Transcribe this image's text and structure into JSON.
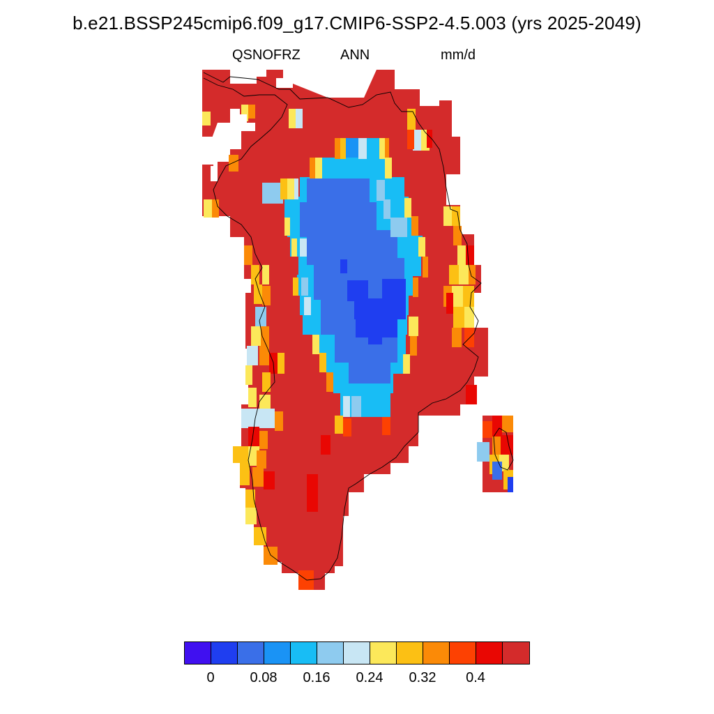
{
  "title": "b.e21.BSSP245cmip6.f09_g17.CMIP6-SSP2-4.5.003 (yrs 2025-2049)",
  "variable": "QSNOFRZ",
  "period": "ANN",
  "units": "mm/d",
  "colorbar": {
    "colors": [
      "#4010f0",
      "#1f3ef0",
      "#3a6fe8",
      "#1a93f5",
      "#18bdf5",
      "#8ecbef",
      "#c8e6f4",
      "#fce85a",
      "#fcc014",
      "#fb8a07",
      "#fd4102",
      "#e90703",
      "#d42b2b"
    ],
    "tick_labels": [
      "0",
      "0.08",
      "0.16",
      "0.24",
      "0.32",
      "0.4"
    ]
  },
  "colors": {
    "land_high": "#d42b2b",
    "coastline": "#000000",
    "background": "#ffffff"
  }
}
